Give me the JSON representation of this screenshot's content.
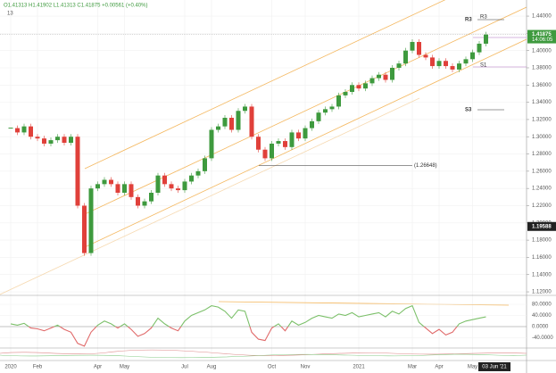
{
  "header": {
    "legend_text": "O1.41313 H1.41902 L1.41313 C1.41875 +0.00561 (+0.40%)",
    "indicator_count": "13"
  },
  "crosshair_label": "03 Jun '21",
  "chart_data": [
    {
      "type": "candlestick",
      "up_color": "#3e9a3e",
      "down_color": "#e0403a",
      "categories": [
        "2020",
        null,
        null,
        null,
        "Feb",
        null,
        null,
        null,
        null,
        null,
        null,
        null,
        null,
        "Apr",
        null,
        null,
        null,
        "May",
        null,
        null,
        null,
        null,
        null,
        null,
        null,
        null,
        "Jul",
        null,
        null,
        null,
        "Aug",
        null,
        null,
        null,
        null,
        null,
        null,
        null,
        null,
        "Oct",
        null,
        null,
        null,
        null,
        "Nov",
        null,
        null,
        null,
        null,
        null,
        null,
        null,
        "2021",
        null,
        null,
        null,
        null,
        null,
        null,
        null,
        "Mar",
        null,
        null,
        null,
        "Apr",
        null,
        null,
        null,
        null,
        "May",
        null,
        null
      ],
      "values": [
        1.31,
        1.305,
        1.312,
        1.3,
        1.298,
        1.292,
        1.296,
        1.3,
        1.293,
        1.3,
        1.22,
        1.165,
        1.24,
        1.245,
        1.25,
        1.245,
        1.235,
        1.245,
        1.23,
        1.22,
        1.225,
        1.235,
        1.255,
        1.245,
        1.24,
        1.238,
        1.248,
        1.255,
        1.26,
        1.275,
        1.308,
        1.312,
        1.322,
        1.308,
        1.33,
        1.335,
        1.3,
        1.285,
        1.275,
        1.292,
        1.295,
        1.288,
        1.305,
        1.298,
        1.31,
        1.318,
        1.328,
        1.332,
        1.335,
        1.348,
        1.352,
        1.36,
        1.356,
        1.362,
        1.368,
        1.372,
        1.366,
        1.38,
        1.385,
        1.4,
        1.41,
        1.395,
        1.392,
        1.382,
        1.388,
        1.382,
        1.378,
        1.385,
        1.39,
        1.398,
        1.408,
        1.41875
      ],
      "ylim": [
        1.1159,
        1.4587
      ],
      "yticks": [
        {
          "value": 1.12,
          "label": "1.12000"
        },
        {
          "value": 1.14,
          "label": "1.14000"
        },
        {
          "value": 1.16,
          "label": "1.16000"
        },
        {
          "value": 1.18,
          "label": "1.18000"
        },
        {
          "value": 1.2,
          "label": "1.20000"
        },
        {
          "value": 1.22,
          "label": "1.22000"
        },
        {
          "value": 1.24,
          "label": "1.24000"
        },
        {
          "value": 1.26,
          "label": "1.26000"
        },
        {
          "value": 1.28,
          "label": "1.28000"
        },
        {
          "value": 1.3,
          "label": "1.30000"
        },
        {
          "value": 1.32,
          "label": "1.32000"
        },
        {
          "value": 1.34,
          "label": "1.34000"
        },
        {
          "value": 1.36,
          "label": "1.36000"
        },
        {
          "value": 1.38,
          "label": "1.38000"
        },
        {
          "value": 1.4,
          "label": "1.40000"
        },
        {
          "value": 1.42,
          "label": "1.42000"
        },
        {
          "value": 1.44,
          "label": "1.44000"
        }
      ],
      "grid": true,
      "price_labels": [
        {
          "value": 1.41875,
          "label": "1.41875",
          "color": "#3e9a3e"
        },
        {
          "value": 1.19588,
          "label": "1.19588",
          "color": "#222"
        }
      ],
      "countdown": "14:06:05",
      "level_annotation": {
        "value": 1.26648,
        "label": "(1.26648)"
      },
      "pivot_labels": [
        "R3",
        "R3",
        "S3",
        "S1"
      ]
    },
    {
      "type": "line",
      "color_up": "#7cc06a",
      "color_down": "#e06a6a",
      "values": [
        10,
        5,
        12,
        -5,
        -8,
        -15,
        -5,
        5,
        -10,
        -20,
        -60,
        -70,
        -20,
        5,
        20,
        10,
        -5,
        10,
        -10,
        -35,
        -25,
        -5,
        30,
        10,
        -5,
        -15,
        20,
        40,
        50,
        60,
        75,
        70,
        55,
        30,
        60,
        55,
        -20,
        -45,
        -50,
        -5,
        10,
        -15,
        20,
        5,
        15,
        30,
        40,
        35,
        30,
        45,
        40,
        50,
        35,
        40,
        45,
        50,
        35,
        55,
        45,
        65,
        75,
        15,
        -5,
        -25,
        -10,
        -30,
        -20,
        10,
        20,
        25,
        30,
        35
      ],
      "ylim": [
        -76.8,
        105.6
      ],
      "yticks": [
        {
          "value": 80,
          "label": "80.0000"
        },
        {
          "value": 40,
          "label": "40.0000"
        },
        {
          "value": 0,
          "label": "0.0000"
        },
        {
          "value": -40,
          "label": "-40.0000"
        }
      ]
    }
  ]
}
